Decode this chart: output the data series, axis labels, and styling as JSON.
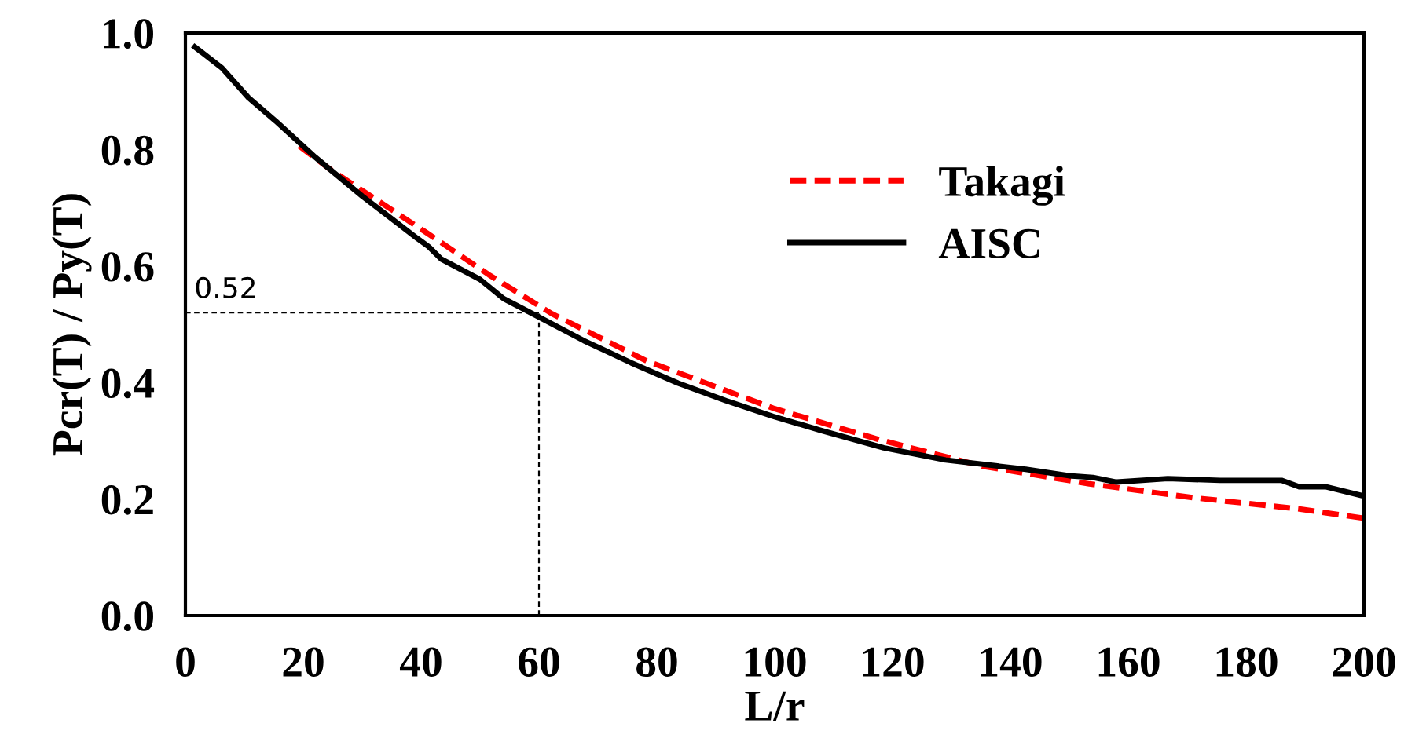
{
  "chart_data": {
    "type": "line",
    "xlabel": "L/r",
    "ylabel": "Pcr(T) / Py(T)",
    "xlim": [
      0,
      200
    ],
    "ylim": [
      0,
      1.0
    ],
    "xticks": [
      0,
      20,
      40,
      60,
      80,
      100,
      120,
      140,
      160,
      180,
      200
    ],
    "yticks": [
      {
        "value": 0,
        "label": "0.0"
      },
      {
        "value": 0.2,
        "label": "0.2"
      },
      {
        "value": 0.4,
        "label": "0.4"
      },
      {
        "value": 0.6,
        "label": "0.6"
      },
      {
        "value": 0.8,
        "label": "0.8"
      },
      {
        "value": 1.0,
        "label": "1.0"
      }
    ],
    "grid": false,
    "legend": "top right",
    "series": [
      {
        "name": "Takagi",
        "color": "#ff0000",
        "line_style": "dashed",
        "x": [
          19.3,
          24.7,
          40.8,
          51.5,
          62.2,
          78.3,
          99.7,
          117.7,
          135.4,
          153.4,
          171.3,
          189,
          200
        ],
        "values": [
          0.806,
          0.765,
          0.658,
          0.585,
          0.518,
          0.437,
          0.356,
          0.302,
          0.256,
          0.226,
          0.202,
          0.183,
          0.167
        ]
      },
      {
        "name": "AISC",
        "color": "#000000",
        "line_style": "solid",
        "x": [
          1.6,
          6.2,
          10.7,
          15.3,
          22,
          30,
          39.4,
          41.3,
          43.4,
          50,
          54,
          59.5,
          67.6,
          75.6,
          83.6,
          91.7,
          99.7,
          107.8,
          118.5,
          129,
          142.6,
          149.9,
          154,
          158,
          166.7,
          175.6,
          186,
          189,
          193.6,
          200
        ],
        "values": [
          0.976,
          0.94,
          0.889,
          0.849,
          0.787,
          0.72,
          0.647,
          0.633,
          0.612,
          0.577,
          0.544,
          0.515,
          0.472,
          0.434,
          0.399,
          0.369,
          0.342,
          0.318,
          0.288,
          0.267,
          0.251,
          0.24,
          0.237,
          0.229,
          0.235,
          0.232,
          0.232,
          0.221,
          0.221,
          0.205
        ]
      }
    ],
    "ref_lines": [
      {
        "axis": "y",
        "value": 0.52,
        "label": "0.52",
        "color": "#000000",
        "line_style": "dashed"
      },
      {
        "axis": "x",
        "value": 60,
        "color": "#000000",
        "line_style": "dashed"
      }
    ]
  }
}
